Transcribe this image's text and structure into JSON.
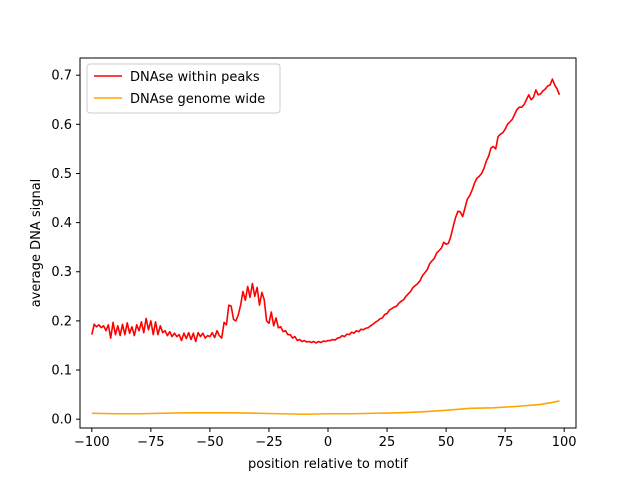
{
  "chart_data": {
    "type": "line",
    "title": "",
    "xlabel": "position relative to motif",
    "ylabel": "average DNA signal",
    "xlim": [
      -105,
      105
    ],
    "ylim": [
      -0.018,
      0.735
    ],
    "xticks": [
      -100,
      -75,
      -50,
      -25,
      0,
      25,
      50,
      75,
      100
    ],
    "yticks": [
      0.0,
      0.1,
      0.2,
      0.3,
      0.4,
      0.5,
      0.6,
      0.7
    ],
    "xtick_labels": [
      "−100",
      "−75",
      "−50",
      "−25",
      "0",
      "25",
      "50",
      "75",
      "100"
    ],
    "ytick_labels": [
      "0.0",
      "0.1",
      "0.2",
      "0.3",
      "0.4",
      "0.5",
      "0.6",
      "0.7"
    ],
    "grid": false,
    "legend": {
      "position": "top-left"
    },
    "series": [
      {
        "name": "DNAse within peaks",
        "color": "#ff0000",
        "points": [
          [
            -100,
            0.172
          ],
          [
            -99,
            0.193
          ],
          [
            -98,
            0.188
          ],
          [
            -97,
            0.192
          ],
          [
            -96,
            0.186
          ],
          [
            -95,
            0.19
          ],
          [
            -94,
            0.18
          ],
          [
            -93,
            0.192
          ],
          [
            -92,
            0.165
          ],
          [
            -91,
            0.197
          ],
          [
            -90,
            0.172
          ],
          [
            -89,
            0.19
          ],
          [
            -88,
            0.17
          ],
          [
            -87,
            0.193
          ],
          [
            -86,
            0.172
          ],
          [
            -85,
            0.196
          ],
          [
            -84,
            0.175
          ],
          [
            -83,
            0.188
          ],
          [
            -82,
            0.17
          ],
          [
            -81,
            0.192
          ],
          [
            -80,
            0.18
          ],
          [
            -79,
            0.198
          ],
          [
            -78,
            0.176
          ],
          [
            -77,
            0.205
          ],
          [
            -76,
            0.182
          ],
          [
            -75,
            0.2
          ],
          [
            -74,
            0.172
          ],
          [
            -73,
            0.198
          ],
          [
            -72,
            0.172
          ],
          [
            -71,
            0.19
          ],
          [
            -70,
            0.176
          ],
          [
            -69,
            0.18
          ],
          [
            -68,
            0.17
          ],
          [
            -67,
            0.178
          ],
          [
            -66,
            0.168
          ],
          [
            -65,
            0.175
          ],
          [
            -64,
            0.168
          ],
          [
            -63,
            0.172
          ],
          [
            -62,
            0.16
          ],
          [
            -61,
            0.175
          ],
          [
            -60,
            0.164
          ],
          [
            -59,
            0.176
          ],
          [
            -58,
            0.162
          ],
          [
            -57,
            0.175
          ],
          [
            -56,
            0.158
          ],
          [
            -55,
            0.176
          ],
          [
            -54,
            0.168
          ],
          [
            -53,
            0.175
          ],
          [
            -52,
            0.165
          ],
          [
            -51,
            0.17
          ],
          [
            -50,
            0.168
          ],
          [
            -49,
            0.176
          ],
          [
            -48,
            0.166
          ],
          [
            -47,
            0.18
          ],
          [
            -46,
            0.17
          ],
          [
            -45,
            0.165
          ],
          [
            -44,
            0.197
          ],
          [
            -43,
            0.192
          ],
          [
            -42,
            0.232
          ],
          [
            -41,
            0.23
          ],
          [
            -40,
            0.203
          ],
          [
            -39,
            0.2
          ],
          [
            -38,
            0.212
          ],
          [
            -37,
            0.232
          ],
          [
            -36,
            0.26
          ],
          [
            -35,
            0.242
          ],
          [
            -34,
            0.27
          ],
          [
            -33,
            0.248
          ],
          [
            -32,
            0.276
          ],
          [
            -31,
            0.25
          ],
          [
            -30,
            0.268
          ],
          [
            -29,
            0.232
          ],
          [
            -28,
            0.258
          ],
          [
            -27,
            0.243
          ],
          [
            -26,
            0.2
          ],
          [
            -25,
            0.195
          ],
          [
            -24,
            0.218
          ],
          [
            -23,
            0.19
          ],
          [
            -22,
            0.206
          ],
          [
            -21,
            0.186
          ],
          [
            -20,
            0.188
          ],
          [
            -19,
            0.178
          ],
          [
            -18,
            0.18
          ],
          [
            -17,
            0.172
          ],
          [
            -16,
            0.172
          ],
          [
            -15,
            0.165
          ],
          [
            -14,
            0.168
          ],
          [
            -13,
            0.16
          ],
          [
            -12,
            0.162
          ],
          [
            -11,
            0.158
          ],
          [
            -10,
            0.16
          ],
          [
            -9,
            0.157
          ],
          [
            -8,
            0.158
          ],
          [
            -7,
            0.156
          ],
          [
            -6,
            0.158
          ],
          [
            -5,
            0.155
          ],
          [
            -4,
            0.158
          ],
          [
            -3,
            0.156
          ],
          [
            -2,
            0.159
          ],
          [
            -1,
            0.158
          ],
          [
            0,
            0.16
          ],
          [
            1,
            0.16
          ],
          [
            2,
            0.162
          ],
          [
            3,
            0.161
          ],
          [
            4,
            0.165
          ],
          [
            5,
            0.166
          ],
          [
            6,
            0.17
          ],
          [
            7,
            0.168
          ],
          [
            8,
            0.173
          ],
          [
            9,
            0.172
          ],
          [
            10,
            0.177
          ],
          [
            11,
            0.175
          ],
          [
            12,
            0.18
          ],
          [
            13,
            0.178
          ],
          [
            14,
            0.183
          ],
          [
            15,
            0.182
          ],
          [
            16,
            0.185
          ],
          [
            17,
            0.186
          ],
          [
            18,
            0.19
          ],
          [
            19,
            0.193
          ],
          [
            20,
            0.197
          ],
          [
            21,
            0.2
          ],
          [
            22,
            0.204
          ],
          [
            23,
            0.206
          ],
          [
            24,
            0.213
          ],
          [
            25,
            0.215
          ],
          [
            26,
            0.222
          ],
          [
            27,
            0.225
          ],
          [
            28,
            0.228
          ],
          [
            29,
            0.23
          ],
          [
            30,
            0.236
          ],
          [
            31,
            0.24
          ],
          [
            32,
            0.243
          ],
          [
            33,
            0.25
          ],
          [
            34,
            0.255
          ],
          [
            35,
            0.26
          ],
          [
            36,
            0.268
          ],
          [
            37,
            0.272
          ],
          [
            38,
            0.276
          ],
          [
            39,
            0.282
          ],
          [
            40,
            0.292
          ],
          [
            41,
            0.298
          ],
          [
            42,
            0.304
          ],
          [
            43,
            0.316
          ],
          [
            44,
            0.322
          ],
          [
            45,
            0.327
          ],
          [
            46,
            0.338
          ],
          [
            47,
            0.343
          ],
          [
            48,
            0.348
          ],
          [
            49,
            0.36
          ],
          [
            50,
            0.356
          ],
          [
            51,
            0.358
          ],
          [
            52,
            0.372
          ],
          [
            53,
            0.392
          ],
          [
            54,
            0.41
          ],
          [
            55,
            0.423
          ],
          [
            56,
            0.422
          ],
          [
            57,
            0.412
          ],
          [
            58,
            0.43
          ],
          [
            59,
            0.448
          ],
          [
            60,
            0.455
          ],
          [
            61,
            0.466
          ],
          [
            62,
            0.48
          ],
          [
            63,
            0.49
          ],
          [
            64,
            0.494
          ],
          [
            65,
            0.5
          ],
          [
            66,
            0.51
          ],
          [
            67,
            0.525
          ],
          [
            68,
            0.535
          ],
          [
            69,
            0.552
          ],
          [
            70,
            0.555
          ],
          [
            71,
            0.55
          ],
          [
            72,
            0.575
          ],
          [
            73,
            0.58
          ],
          [
            74,
            0.583
          ],
          [
            75,
            0.59
          ],
          [
            76,
            0.6
          ],
          [
            77,
            0.605
          ],
          [
            78,
            0.61
          ],
          [
            79,
            0.62
          ],
          [
            80,
            0.63
          ],
          [
            81,
            0.635
          ],
          [
            82,
            0.635
          ],
          [
            83,
            0.64
          ],
          [
            84,
            0.65
          ],
          [
            85,
            0.66
          ],
          [
            86,
            0.65
          ],
          [
            87,
            0.655
          ],
          [
            88,
            0.67
          ],
          [
            89,
            0.66
          ],
          [
            90,
            0.662
          ],
          [
            91,
            0.668
          ],
          [
            92,
            0.672
          ],
          [
            93,
            0.678
          ],
          [
            94,
            0.68
          ],
          [
            95,
            0.692
          ],
          [
            96,
            0.68
          ],
          [
            97,
            0.672
          ],
          [
            98,
            0.66
          ]
        ]
      },
      {
        "name": "DNAse genome wide",
        "color": "#ffa500",
        "points": [
          [
            -100,
            0.012
          ],
          [
            -90,
            0.011
          ],
          [
            -80,
            0.011
          ],
          [
            -70,
            0.012
          ],
          [
            -60,
            0.013
          ],
          [
            -50,
            0.013
          ],
          [
            -40,
            0.013
          ],
          [
            -30,
            0.012
          ],
          [
            -20,
            0.011
          ],
          [
            -10,
            0.01
          ],
          [
            0,
            0.011
          ],
          [
            10,
            0.011
          ],
          [
            20,
            0.012
          ],
          [
            30,
            0.013
          ],
          [
            40,
            0.015
          ],
          [
            50,
            0.018
          ],
          [
            55,
            0.02
          ],
          [
            60,
            0.022
          ],
          [
            70,
            0.023
          ],
          [
            80,
            0.026
          ],
          [
            90,
            0.03
          ],
          [
            95,
            0.034
          ],
          [
            98,
            0.037
          ]
        ]
      }
    ]
  }
}
